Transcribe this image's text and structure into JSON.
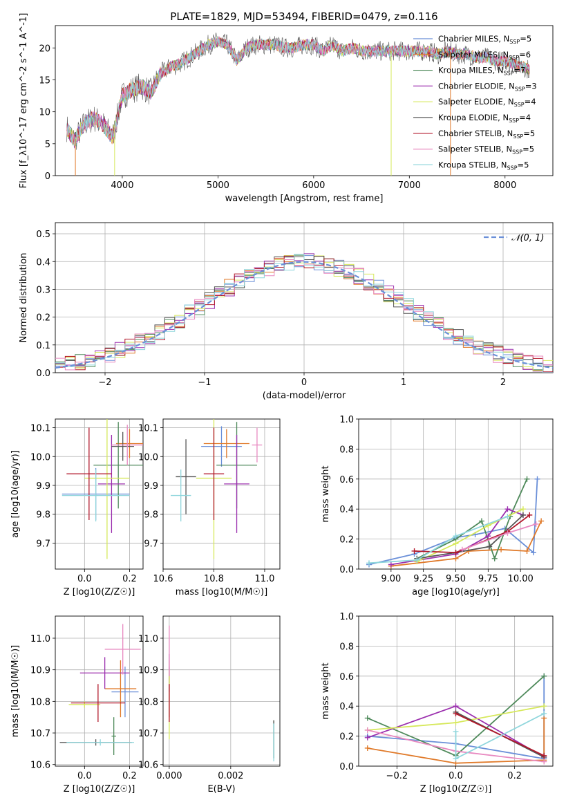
{
  "figure_title": "PLATE=1829, MJD=53494, FIBERID=0479, z=0.116",
  "series_colors": [
    "#6a8fd8",
    "#e07a2a",
    "#4f8a5b",
    "#9b2fae",
    "#d6e85a",
    "#555555",
    "#b2182b",
    "#e889c0",
    "#8fd6dc"
  ],
  "chart_data": [
    {
      "id": "spectrum",
      "type": "line",
      "xlabel": "wavelength [Angstrom, rest frame]",
      "ylabel": "Flux [f_λ10^-17 erg cm^-2 s^-1 A^-1]",
      "xlim": [
        3300,
        8500
      ],
      "ylim": [
        0,
        23.5
      ],
      "xticks": [
        4000,
        5000,
        6000,
        7000,
        8000
      ],
      "yticks": [
        0,
        5,
        10,
        15,
        20
      ],
      "grid": false,
      "legend": "top-right",
      "legend_entries": [
        "Chabrier MILES, N_SSP=5",
        "Salpeter MILES, N_SSP=6",
        "Kroupa MILES, N_SSP=7",
        "Chabrier ELODIE, N_SSP=3",
        "Salpeter ELODIE, N_SSP=4",
        "Kroupa ELODIE, N_SSP=4",
        "Chabrier STELIB, N_SSP=5",
        "Salpeter STELIB, N_SSP=5",
        "Kroupa STELIB, N_SSP=5"
      ],
      "series": [
        {
          "label_index": 6,
          "x": [
            3420,
            3500,
            3600,
            3700,
            3800,
            3900,
            4000,
            4100,
            4200,
            4300,
            4400,
            4500,
            4600,
            4700,
            4800,
            4900,
            5000,
            5100,
            5200,
            5300,
            5400,
            5500,
            5600,
            5700,
            5800,
            5900,
            6000,
            6100,
            6200,
            6300,
            6400,
            6500,
            6600,
            6700,
            6800,
            6900,
            7000,
            7100,
            7200,
            7300,
            7400,
            7500,
            7600,
            7700,
            7800,
            7900,
            8000,
            8100,
            8200,
            8260
          ],
          "y": [
            7.5,
            5.5,
            8,
            9,
            8,
            6,
            12.5,
            13.5,
            14,
            13,
            16,
            17,
            17.5,
            18.5,
            19.5,
            20.5,
            21,
            20.5,
            18,
            20,
            20.5,
            20.5,
            20.5,
            20,
            20,
            20.5,
            20.5,
            19.5,
            20.5,
            19.5,
            20,
            19.5,
            19.5,
            19.5,
            19.5,
            19.5,
            19.5,
            19.5,
            19.5,
            19,
            19.5,
            19,
            19,
            18.5,
            18.5,
            18,
            18,
            17.5,
            17,
            16.5
          ]
        }
      ]
    },
    {
      "id": "residuals",
      "type": "histogram",
      "xlabel": "(data-model)/error",
      "ylabel": "Normed distribution",
      "xlim": [
        -2.5,
        2.5
      ],
      "ylim": [
        0,
        0.54
      ],
      "xticks": [
        -2,
        -1,
        0,
        1,
        2
      ],
      "yticks": [
        0.0,
        0.1,
        0.2,
        0.3,
        0.4,
        0.5
      ],
      "grid": true,
      "legend": "top-right",
      "reference_label": "𝒩(0, 1)",
      "reference_curve": {
        "type": "normal",
        "mean": 0,
        "sigma": 1
      },
      "bin_width": 0.1
    },
    {
      "id": "age_vs_Z",
      "type": "errorbar",
      "xlabel": "Z [log10(Z/Z☉)]",
      "ylabel": "age  [log10(age/yr)]",
      "xlim": [
        -0.13,
        0.26
      ],
      "ylim": [
        9.61,
        10.13
      ],
      "xticks": [
        0.0,
        0.2
      ],
      "yticks": [
        9.7,
        9.8,
        9.9,
        10.0,
        10.1
      ],
      "grid": true,
      "points": [
        {
          "x": 0.05,
          "xerr": 0.15,
          "y": 9.87,
          "yerr": 0.09,
          "color": 0
        },
        {
          "x": 0.2,
          "xerr": 0.06,
          "y": 10.045,
          "yerr": 0.05,
          "color": 1
        },
        {
          "x": 0.15,
          "xerr": 0.11,
          "y": 9.97,
          "yerr": 0.15,
          "color": 2
        },
        {
          "x": 0.12,
          "xerr": 0.06,
          "y": 9.905,
          "yerr": 0.17,
          "color": 3
        },
        {
          "x": 0.1,
          "xerr": 0.1,
          "y": 9.925,
          "yerr": 0.28,
          "color": 4
        },
        {
          "x": 0.17,
          "xerr": 0.05,
          "y": 10.035,
          "yerr": 0.05,
          "color": 5
        },
        {
          "x": 0.02,
          "xerr": 0.1,
          "y": 9.94,
          "yerr": 0.16,
          "color": 6
        },
        {
          "x": 0.19,
          "xerr": 0.07,
          "y": 10.04,
          "yerr": 0.07,
          "color": 7
        },
        {
          "x": 0.05,
          "xerr": 0.15,
          "y": 9.865,
          "yerr": 0.09,
          "color": 8
        }
      ]
    },
    {
      "id": "age_vs_mass",
      "type": "errorbar",
      "xlabel": "mass [log10(M/M☉)]",
      "ylabel": "",
      "xlim": [
        10.6,
        11.06
      ],
      "ylim": [
        9.61,
        10.13
      ],
      "xticks": [
        10.6,
        10.8,
        11.0
      ],
      "yticks": [
        9.7,
        9.8,
        9.9,
        10.0,
        10.1
      ],
      "grid": true,
      "points": [
        {
          "x": 10.83,
          "xerr": 0.08,
          "y": 10.035,
          "yerr": 0.07,
          "color": 0
        },
        {
          "x": 10.85,
          "xerr": 0.09,
          "y": 10.045,
          "yerr": 0.05,
          "color": 1
        },
        {
          "x": 10.89,
          "xerr": 0.08,
          "y": 9.97,
          "yerr": 0.15,
          "color": 2
        },
        {
          "x": 10.89,
          "xerr": 0.05,
          "y": 9.905,
          "yerr": 0.17,
          "color": 3
        },
        {
          "x": 10.8,
          "xerr": 0.07,
          "y": 9.925,
          "yerr": 0.28,
          "color": 4
        },
        {
          "x": 10.69,
          "xerr": 0.04,
          "y": 9.93,
          "yerr": 0.13,
          "color": 5
        },
        {
          "x": 10.8,
          "xerr": 0.04,
          "y": 9.94,
          "yerr": 0.16,
          "color": 6
        },
        {
          "x": 10.97,
          "xerr": 0.02,
          "y": 10.04,
          "yerr": 0.06,
          "color": 7
        },
        {
          "x": 10.67,
          "xerr": 0.04,
          "y": 9.865,
          "yerr": 0.09,
          "color": 8
        }
      ]
    },
    {
      "id": "massweight_vs_age",
      "type": "line",
      "xlabel": "age  [log10(age/yr)]",
      "ylabel": "mass weight",
      "xlim": [
        8.75,
        10.25
      ],
      "ylim": [
        0,
        1
      ],
      "xticks": [
        9.0,
        9.25,
        9.5,
        9.75,
        10.0
      ],
      "yticks": [
        0.0,
        0.2,
        0.4,
        0.6,
        0.8,
        1.0
      ],
      "grid": true,
      "series": [
        {
          "color": 0,
          "x": [
            8.83,
            9.18,
            9.5,
            9.65,
            9.88,
            10.1,
            10.13
          ],
          "y": [
            0.03,
            0.1,
            0.21,
            0.23,
            0.27,
            0.11,
            0.6
          ]
        },
        {
          "color": 1,
          "x": [
            9.0,
            9.5,
            9.6,
            9.85,
            10.05,
            10.16
          ],
          "y": [
            0.02,
            0.07,
            0.12,
            0.13,
            0.12,
            0.32
          ]
        },
        {
          "color": 2,
          "x": [
            9.2,
            9.5,
            9.7,
            9.8,
            9.92,
            10.05
          ],
          "y": [
            0.07,
            0.2,
            0.32,
            0.07,
            0.35,
            0.6
          ]
        },
        {
          "color": 3,
          "x": [
            9.0,
            9.5,
            9.75,
            9.9,
            10.02
          ],
          "y": [
            0.03,
            0.1,
            0.22,
            0.4,
            0.36
          ]
        },
        {
          "color": 4,
          "x": [
            9.2,
            9.5,
            9.75,
            10.02
          ],
          "y": [
            0.05,
            0.17,
            0.29,
            0.4
          ]
        },
        {
          "color": 5,
          "x": [
            9.2,
            9.5,
            9.76,
            10.02
          ],
          "y": [
            0.07,
            0.11,
            0.15,
            0.36
          ]
        },
        {
          "color": 6,
          "x": [
            9.18,
            9.5,
            9.9,
            10.07
          ],
          "y": [
            0.12,
            0.11,
            0.25,
            0.36
          ]
        },
        {
          "color": 7,
          "x": [
            9.55,
            9.9,
            10.12
          ],
          "y": [
            0.13,
            0.24,
            0.3
          ]
        },
        {
          "color": 8,
          "x": [
            8.83,
            9.2,
            9.5,
            9.9
          ],
          "y": [
            0.04,
            0.06,
            0.22,
            0.35
          ]
        }
      ]
    },
    {
      "id": "mass_vs_Z",
      "type": "errorbar",
      "xlabel": "Z [log10(Z/Z☉)]",
      "ylabel": "mass [log10(M/M☉)]",
      "xlim": [
        -0.13,
        0.26
      ],
      "ylim": [
        10.595,
        11.07
      ],
      "xticks": [
        0.0,
        0.2
      ],
      "yticks": [
        10.6,
        10.7,
        10.8,
        10.9,
        11.0
      ],
      "grid": true,
      "points": [
        {
          "x": 0.18,
          "xerr": 0.06,
          "y": 10.83,
          "yerr": 0.08,
          "color": 0
        },
        {
          "x": 0.16,
          "xerr": 0.07,
          "y": 10.84,
          "yerr": 0.09,
          "color": 1
        },
        {
          "x": 0.13,
          "xerr": 0.01,
          "y": 10.69,
          "yerr": 0.06,
          "color": 2
        },
        {
          "x": 0.09,
          "xerr": 0.11,
          "y": 10.89,
          "yerr": 0.05,
          "color": 3
        },
        {
          "x": 0.0,
          "xerr": 0.07,
          "y": 10.79,
          "yerr": 0.01,
          "color": 4
        },
        {
          "x": 0.05,
          "xerr": 0.16,
          "y": 10.67,
          "yerr": 0.01,
          "color": 5
        },
        {
          "x": 0.06,
          "xerr": 0.12,
          "y": 10.795,
          "yerr": 0.06,
          "color": 6
        },
        {
          "x": 0.17,
          "xerr": 0.08,
          "y": 10.965,
          "yerr": 0.08,
          "color": 7
        },
        {
          "x": 0.07,
          "xerr": 0.15,
          "y": 10.67,
          "yerr": 0.01,
          "color": 8
        }
      ]
    },
    {
      "id": "mass_vs_EBV",
      "type": "errorbar",
      "xlabel": "E(B-V)",
      "ylabel": "",
      "xlim": [
        -0.0002,
        0.0036
      ],
      "ylim": [
        10.595,
        11.07
      ],
      "xticks": [
        0.0,
        0.002
      ],
      "yticks": [
        10.6,
        10.7,
        10.8,
        10.9,
        11.0
      ],
      "grid": true,
      "points": [
        {
          "x": 0.0,
          "xerr": 0.0,
          "y": 10.83,
          "yerr": 0.08,
          "color": 0
        },
        {
          "x": 0.0,
          "xerr": 0.0,
          "y": 10.84,
          "yerr": 0.09,
          "color": 1
        },
        {
          "x": 0.0034,
          "xerr": 0.0,
          "y": 10.68,
          "yerr": 0.06,
          "color": 2
        },
        {
          "x": 0.0,
          "xerr": 0.0,
          "y": 10.89,
          "yerr": 0.06,
          "color": 3
        },
        {
          "x": 0.0,
          "xerr": 0.0,
          "y": 10.79,
          "yerr": 0.11,
          "color": 4
        },
        {
          "x": 0.0034,
          "xerr": 0.0,
          "y": 10.68,
          "yerr": 0.06,
          "color": 5
        },
        {
          "x": 0.0,
          "xerr": 0.0,
          "y": 10.795,
          "yerr": 0.06,
          "color": 6
        },
        {
          "x": 0.0,
          "xerr": 0.0,
          "y": 10.96,
          "yerr": 0.08,
          "color": 7
        },
        {
          "x": 0.0034,
          "xerr": 0.0,
          "y": 10.67,
          "yerr": 0.06,
          "color": 8
        }
      ]
    },
    {
      "id": "massweight_vs_Z",
      "type": "line",
      "xlabel": "Z [log10(Z/Z☉)]",
      "ylabel": "mass weight",
      "xlim": [
        -0.33,
        0.33
      ],
      "ylim": [
        0,
        1
      ],
      "xticks": [
        -0.2,
        0.0,
        0.2
      ],
      "yticks": [
        0.0,
        0.2,
        0.4,
        0.6,
        0.8,
        1.0
      ],
      "grid": true,
      "series": [
        {
          "color": 0,
          "x": [
            -0.3,
            0.0,
            0.3,
            0.3
          ],
          "y": [
            0.2,
            0.15,
            0.05,
            0.6
          ]
        },
        {
          "color": 1,
          "x": [
            -0.3,
            0.0,
            0.3,
            0.3
          ],
          "y": [
            0.12,
            0.02,
            0.04,
            0.32
          ]
        },
        {
          "color": 2,
          "x": [
            -0.3,
            0.0,
            0.3
          ],
          "y": [
            0.32,
            0.07,
            0.6
          ]
        },
        {
          "color": 3,
          "x": [
            -0.3,
            0.0,
            0.3
          ],
          "y": [
            0.19,
            0.4,
            0.06
          ]
        },
        {
          "color": 4,
          "x": [
            -0.3,
            0.0,
            0.3
          ],
          "y": [
            0.24,
            0.29,
            0.4
          ]
        },
        {
          "color": 5,
          "x": [
            0.0,
            0.3
          ],
          "y": [
            0.36,
            0.06
          ]
        },
        {
          "color": 6,
          "x": [
            0.0,
            0.3
          ],
          "y": [
            0.35,
            0.07
          ]
        },
        {
          "color": 7,
          "x": [
            -0.3,
            0.0,
            0.3
          ],
          "y": [
            0.24,
            0.1,
            0.03
          ]
        },
        {
          "color": 8,
          "x": [
            0.0,
            0.0,
            0.3
          ],
          "y": [
            0.23,
            0.05,
            0.35
          ]
        }
      ]
    }
  ]
}
